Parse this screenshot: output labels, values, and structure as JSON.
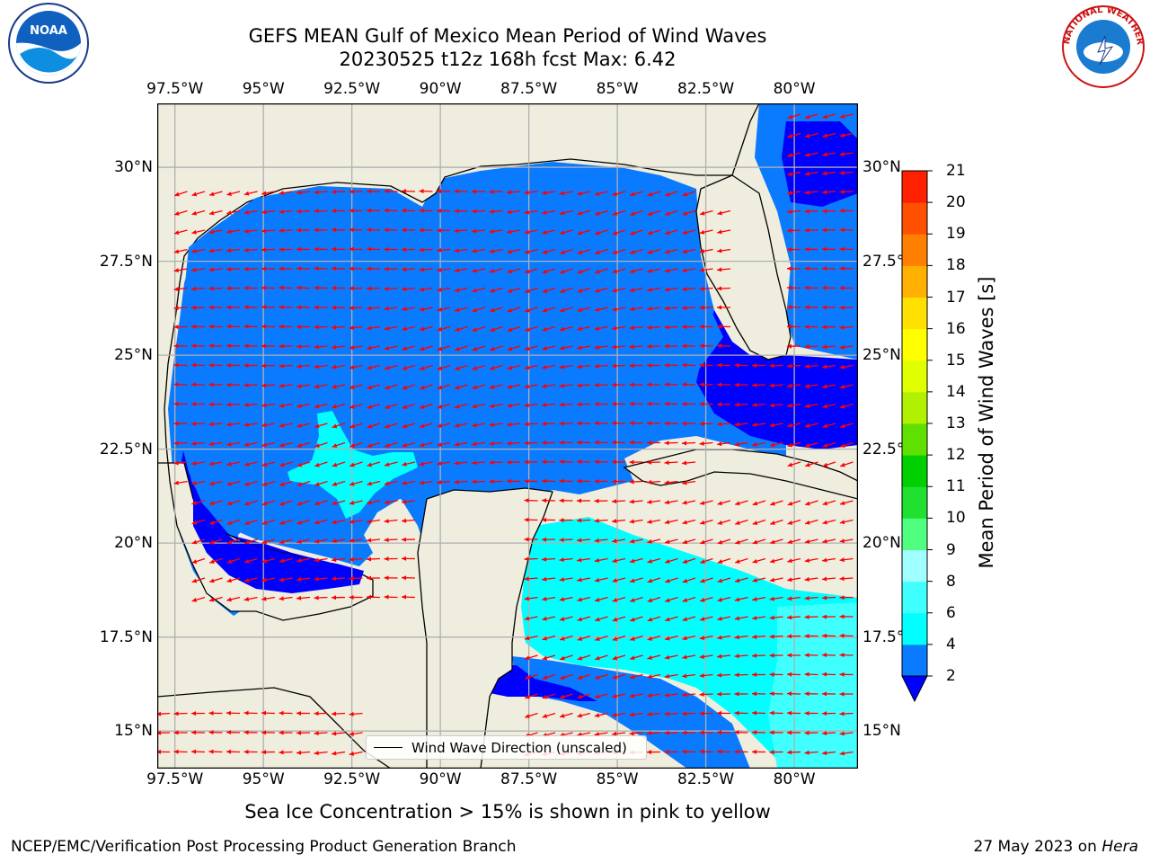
{
  "header": {
    "title_line1": "GEFS MEAN Gulf of Mexico Mean Period of Wind Waves",
    "title_line2": "20230525 t12z 168h fcst   Max: 6.42"
  },
  "logos": {
    "left": "noaa-logo",
    "right": "nws-logo",
    "left_text": "NOAA",
    "right_text": "NATIONAL WEATHER SERVICE"
  },
  "map": {
    "lon_ticks": [
      "97.5°W",
      "95°W",
      "92.5°W",
      "90°W",
      "87.5°W",
      "85°W",
      "82.5°W",
      "80°W"
    ],
    "lat_ticks_left": [
      "30°N",
      "27.5°N",
      "25°N",
      "22.5°N",
      "20°N",
      "17.5°N",
      "15°N"
    ],
    "lat_ticks_right": [
      "30°N",
      "27.5°N",
      "25°N",
      "22.5°N",
      "20°N",
      "17.5°N",
      "15°N"
    ],
    "lon_values": [
      -97.5,
      -95,
      -92.5,
      -90,
      -87.5,
      -85,
      -82.5,
      -80
    ],
    "lat_values": [
      30,
      27.5,
      25,
      22.5,
      20,
      17.5,
      15
    ],
    "lon_range": [
      -98,
      -78.2
    ],
    "lat_range": [
      14,
      31.7
    ],
    "land_color": "#efedde",
    "arrow_color": "#ff0000",
    "grid": true
  },
  "legend": {
    "label": "Wind Wave Direction (unscaled)"
  },
  "colorbar": {
    "label": "Mean Period of Wind Waves [s]",
    "ticks": [
      "2",
      "4",
      "6",
      "8",
      "9",
      "10",
      "11",
      "12",
      "13",
      "14",
      "15",
      "16",
      "17",
      "18",
      "19",
      "20",
      "21"
    ],
    "levels": [
      2,
      4,
      6,
      8,
      9,
      10,
      11,
      12,
      13,
      14,
      15,
      16,
      17,
      18,
      19,
      20,
      21
    ],
    "colors": [
      "#0a7aff",
      "#00ffff",
      "#40ffff",
      "#a0ffff",
      "#50ff80",
      "#20e030",
      "#00d000",
      "#60e000",
      "#b0f000",
      "#e0ff00",
      "#ffff00",
      "#ffe000",
      "#ffb000",
      "#ff8000",
      "#ff5000",
      "#ff2000"
    ],
    "under_color": "#0000ff"
  },
  "footer": {
    "note": "Sea Ice Concentration > 15% is shown in pink to yellow",
    "credit_left": "NCEP/EMC/Verification Post Processing Product Generation Branch",
    "credit_right_date": "27 May 2023 on",
    "credit_right_host": "Hera"
  }
}
